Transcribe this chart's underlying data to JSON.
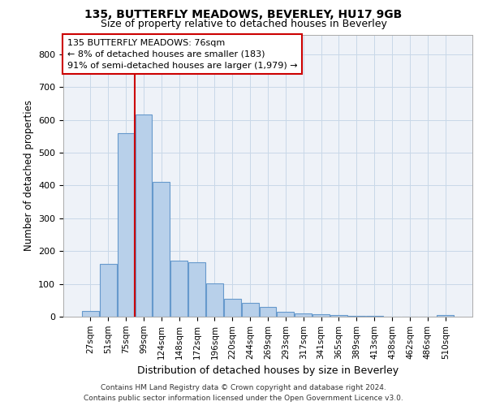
{
  "title1": "135, BUTTERFLY MEADOWS, BEVERLEY, HU17 9GB",
  "title2": "Size of property relative to detached houses in Beverley",
  "xlabel": "Distribution of detached houses by size in Beverley",
  "ylabel": "Number of detached properties",
  "categories": [
    "27sqm",
    "51sqm",
    "75sqm",
    "99sqm",
    "124sqm",
    "148sqm",
    "172sqm",
    "196sqm",
    "220sqm",
    "244sqm",
    "269sqm",
    "293sqm",
    "317sqm",
    "341sqm",
    "365sqm",
    "389sqm",
    "413sqm",
    "438sqm",
    "462sqm",
    "486sqm",
    "510sqm"
  ],
  "values": [
    18,
    160,
    560,
    615,
    410,
    170,
    165,
    102,
    55,
    42,
    30,
    14,
    10,
    8,
    5,
    3,
    2,
    1,
    0,
    0,
    6
  ],
  "bar_color": "#b8d0ea",
  "bar_edge_color": "#6699cc",
  "grid_color": "#c8d8e8",
  "annotation_text_line1": "135 BUTTERFLY MEADOWS: 76sqm",
  "annotation_text_line2": "← 8% of detached houses are smaller (183)",
  "annotation_text_line3": "91% of semi-detached houses are larger (1,979) →",
  "annotation_box_facecolor": "#ffffff",
  "annotation_box_edgecolor": "#cc0000",
  "vline_color": "#cc0000",
  "vline_x_index": 2.5,
  "footer1": "Contains HM Land Registry data © Crown copyright and database right 2024.",
  "footer2": "Contains public sector information licensed under the Open Government Licence v3.0.",
  "ylim": [
    0,
    860
  ],
  "yticks": [
    0,
    100,
    200,
    300,
    400,
    500,
    600,
    700,
    800
  ],
  "background_color": "#eef2f8"
}
